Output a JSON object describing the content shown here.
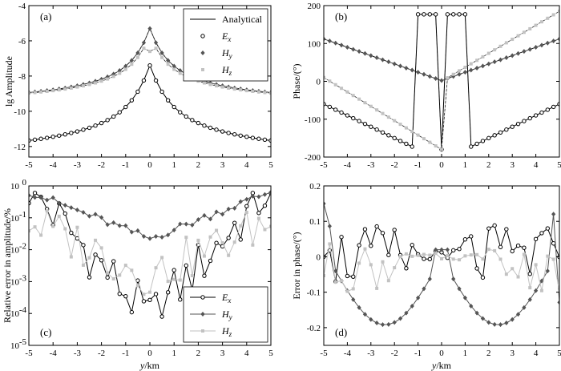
{
  "xlabel": "y/km",
  "xticks": [
    "-5",
    "-4",
    "-3",
    "-2",
    "-1",
    "0",
    "1",
    "2",
    "3",
    "4",
    "5"
  ],
  "colors": {
    "Ex": "#000000",
    "Hy": "#555555",
    "Hz": "#c2c2c2",
    "analytical": "#000000"
  },
  "chart_data": [
    {
      "id": "a",
      "label": "(a)",
      "type": "line",
      "ylabel": "lg Amplitude",
      "xlim": [
        -5,
        5
      ],
      "ylim": [
        -12.6,
        -4
      ],
      "yticks": [
        -12,
        -10,
        -8,
        -6,
        -4
      ],
      "legend": {
        "placement": "top-right",
        "entries": [
          {
            "key": "analytical",
            "text": "Analytical",
            "marker": "line"
          },
          {
            "key": "Ex",
            "text": "E",
            "sub": "x",
            "marker": "circle"
          },
          {
            "key": "Hy",
            "text": "H",
            "sub": "y",
            "marker": "diamond"
          },
          {
            "key": "Hz",
            "text": "H",
            "sub": "z",
            "marker": "square"
          }
        ]
      },
      "series": [
        {
          "key": "Ex",
          "model": "peak",
          "params": {
            "base": -12.25,
            "peak": -7.4,
            "s1": 3.3,
            "s2": 0.7,
            "w": 0.55,
            "c": 0.4
          }
        },
        {
          "key": "Hy",
          "model": "peak",
          "params": {
            "base": -9.25,
            "peak": -5.3,
            "s1": 2.6,
            "s2": 0.6,
            "w": 0.55,
            "c": 0.2
          }
        },
        {
          "key": "Hz",
          "model": "hz",
          "params": {
            "base": -9.25,
            "peak": -5.7,
            "s1": 2.6,
            "s2": 0.6,
            "w": 0.55,
            "c": 0.2
          }
        }
      ]
    },
    {
      "id": "b",
      "label": "(b)",
      "type": "line",
      "ylabel": "Phase/(°)",
      "xlim": [
        -5,
        5
      ],
      "ylim": [
        -200,
        200
      ],
      "yticks": [
        -200,
        -100,
        0,
        100,
        200
      ],
      "series": [
        {
          "key": "Ex",
          "model": "phaseEx"
        },
        {
          "key": "Hy",
          "model": "phaseHy"
        },
        {
          "key": "Hz",
          "model": "phaseHz"
        }
      ]
    },
    {
      "id": "c",
      "label": "(c)",
      "type": "line",
      "ylabel": "Relative error in amplitude/%",
      "xlim": [
        -5,
        5
      ],
      "ylog": true,
      "ylim": [
        1e-05,
        1
      ],
      "yticks": [
        {
          "v": 1e-05,
          "b": "10",
          "e": "-5"
        },
        {
          "v": 0.0001,
          "b": "10",
          "e": "-4"
        },
        {
          "v": 0.001,
          "b": "10",
          "e": "-3"
        },
        {
          "v": 0.01,
          "b": "10",
          "e": "-2"
        },
        {
          "v": 0.1,
          "b": "10",
          "e": "-1"
        },
        {
          "v": 1,
          "b": "10",
          "e": "0"
        }
      ],
      "legend": {
        "placement": "bottom-right",
        "entries": [
          {
            "key": "Ex",
            "text": "E",
            "sub": "x",
            "marker": "circle"
          },
          {
            "key": "Hy",
            "text": "H",
            "sub": "y",
            "marker": "diamond"
          },
          {
            "key": "Hz",
            "text": "H",
            "sub": "z",
            "marker": "square"
          }
        ]
      },
      "series": [
        {
          "key": "Ex",
          "model": "errEx"
        },
        {
          "key": "Hy",
          "model": "errHy"
        },
        {
          "key": "Hz",
          "model": "errHz"
        }
      ]
    },
    {
      "id": "d",
      "label": "(d)",
      "type": "line",
      "ylabel": "Error in phase/(°)",
      "xlim": [
        -5,
        5
      ],
      "ylim": [
        -0.25,
        0.2
      ],
      "yticks": [
        -0.2,
        -0.1,
        0,
        0.1,
        0.2
      ],
      "series": [
        {
          "key": "Ex",
          "model": "dEx"
        },
        {
          "key": "Hy",
          "model": "dHy"
        },
        {
          "key": "Hz",
          "model": "dHz"
        }
      ]
    }
  ]
}
